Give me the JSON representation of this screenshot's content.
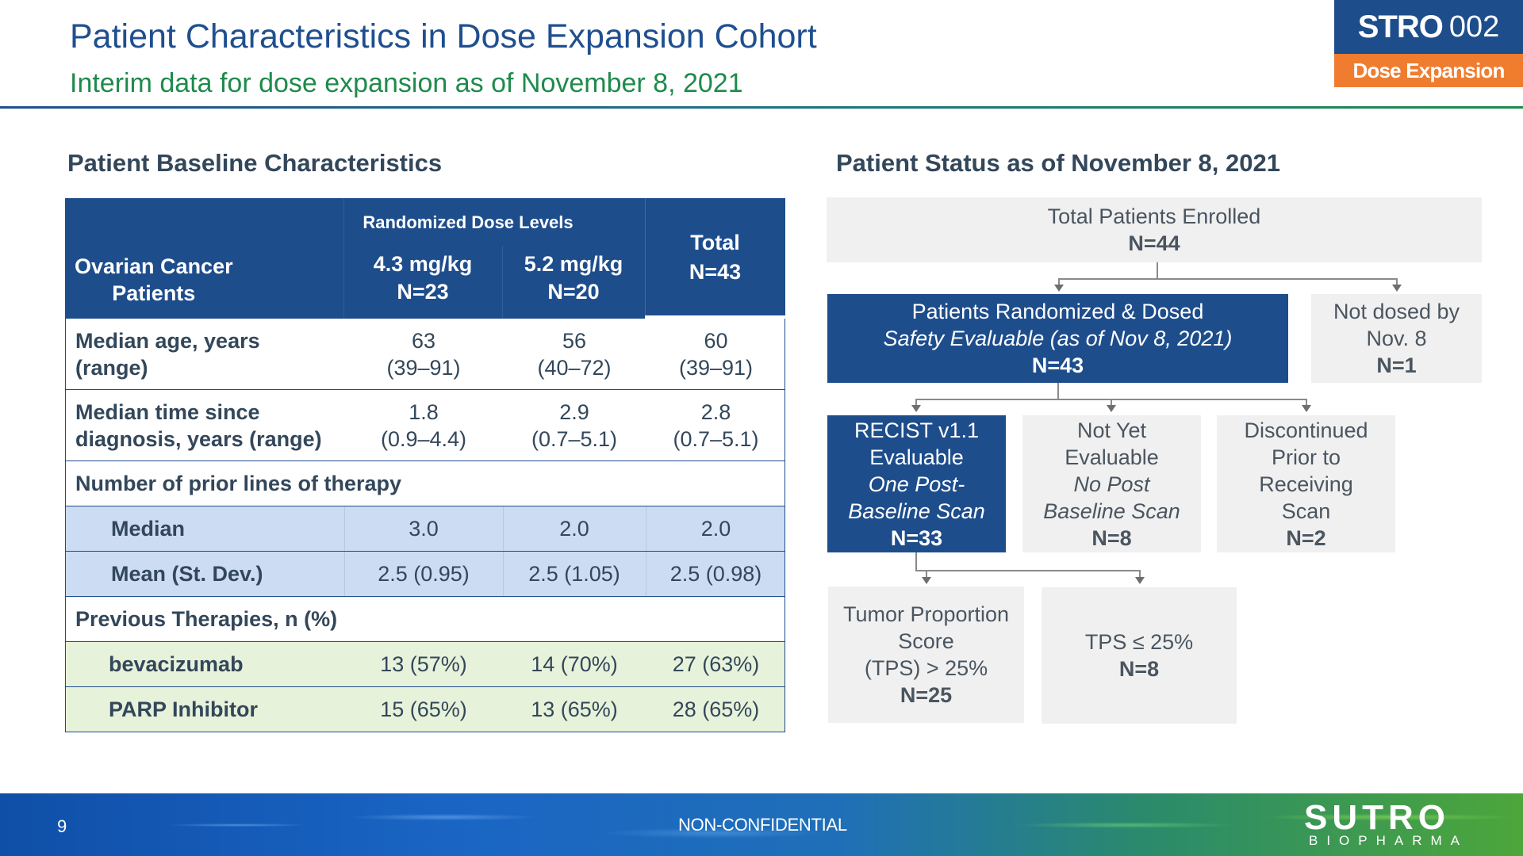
{
  "header": {
    "title": "Patient Characteristics in Dose Expansion Cohort",
    "subtitle": "Interim data for dose expansion as of November 8, 2021",
    "badge_main": "STRO",
    "badge_num": "002",
    "badge_label": "Dose Expansion"
  },
  "left_section": {
    "heading": "Patient Baseline Characteristics",
    "table": {
      "row_header": [
        "Ovarian Cancer",
        "Patients"
      ],
      "group_header": "Randomized Dose Levels",
      "col1": [
        "4.3 mg/kg",
        "N=23"
      ],
      "col2": [
        "5.2 mg/kg",
        "N=20"
      ],
      "total": [
        "Total",
        "N=43"
      ],
      "rows": [
        {
          "label": [
            "Median age, years",
            "(range)"
          ],
          "c1": [
            "63",
            "(39–91)"
          ],
          "c2": [
            "56",
            "(40–72)"
          ],
          "c3": [
            "60",
            "(39–91)"
          ]
        },
        {
          "label": [
            "Median time since",
            "diagnosis, years (range)"
          ],
          "c1": [
            "1.8",
            "(0.9–4.4)"
          ],
          "c2": [
            "2.9",
            "(0.7–5.1)"
          ],
          "c3": [
            "2.8",
            "(0.7–5.1)"
          ]
        },
        {
          "label": "Number of prior lines of therapy"
        },
        {
          "label": "Median",
          "c1": "3.0",
          "c2": "2.0",
          "c3": "2.0"
        },
        {
          "label": "Mean (St. Dev.)",
          "c1": "2.5 (0.95)",
          "c2": "2.5 (1.05)",
          "c3": "2.5 (0.98)"
        },
        {
          "label": "Previous Therapies, n (%)"
        },
        {
          "label": "bevacizumab",
          "c1": "13 (57%)",
          "c2": "14 (70%)",
          "c3": "27 (63%)"
        },
        {
          "label": "PARP Inhibitor",
          "c1": "15 (65%)",
          "c2": "13 (65%)",
          "c3": "28 (65%)"
        }
      ]
    }
  },
  "right_section": {
    "heading": "Patient Status as of November 8, 2021",
    "enrolled": {
      "label": "Total Patients Enrolled",
      "n": "N=44"
    },
    "randomized": {
      "line1": "Patients Randomized & Dosed",
      "line2": "Safety Evaluable (as of Nov 8, 2021)",
      "n": "N=43"
    },
    "not_dosed": {
      "line1": "Not dosed by",
      "line2": "Nov. 8",
      "n": "N=1"
    },
    "recist": {
      "line1": "RECIST v1.1",
      "line2": "Evaluable",
      "line3": "One Post-",
      "line4": "Baseline Scan",
      "n": "N=33"
    },
    "not_yet": {
      "line1": "Not Yet",
      "line2": "Evaluable",
      "line3": "No Post",
      "line4": "Baseline Scan",
      "n": "N=8"
    },
    "discontinued": {
      "line1": "Discontinued",
      "line2": "Prior to",
      "line3": "Receiving",
      "line4": "Scan",
      "n": "N=2"
    },
    "tps_high": {
      "line1": "Tumor Proportion",
      "line2": "Score",
      "line3": "(TPS) > 25%",
      "n": "N=25"
    },
    "tps_low": {
      "line1": "TPS ≤ 25%",
      "n": "N=8"
    }
  },
  "footer": {
    "page_number": "9",
    "confidential": "NON-CONFIDENTIAL",
    "logo_main": "SUTRO",
    "logo_sub": "BIOPHARMA"
  }
}
